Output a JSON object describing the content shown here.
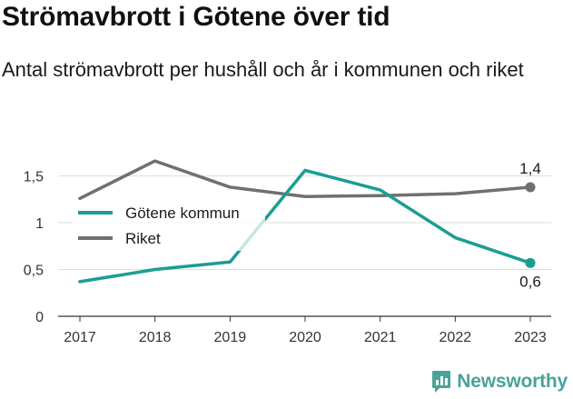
{
  "title": "Strömavbrott i Götene över tid",
  "subtitle": "Antal strömavbrott per hushåll och år i kommunen och riket",
  "brand": {
    "name": "Newsworthy",
    "icon": "newsworthy-logo-icon",
    "color": "#4aa39a"
  },
  "chart_data": {
    "type": "line",
    "x": [
      "2017",
      "2018",
      "2019",
      "2020",
      "2021",
      "2022",
      "2023"
    ],
    "yticks": [
      "0",
      "0,5",
      "1",
      "1,5"
    ],
    "ylim": [
      0,
      1.7
    ],
    "grid": true,
    "legend_position": "left",
    "series": [
      {
        "name": "Götene kommun",
        "color": "#1a9e94",
        "values": [
          0.37,
          0.5,
          0.58,
          1.56,
          1.35,
          0.84,
          0.57
        ],
        "end_label": "0,6"
      },
      {
        "name": "Riket",
        "color": "#6f6f74",
        "values": [
          1.26,
          1.66,
          1.38,
          1.28,
          1.29,
          1.31,
          1.38
        ],
        "end_label": "1,4"
      }
    ]
  }
}
